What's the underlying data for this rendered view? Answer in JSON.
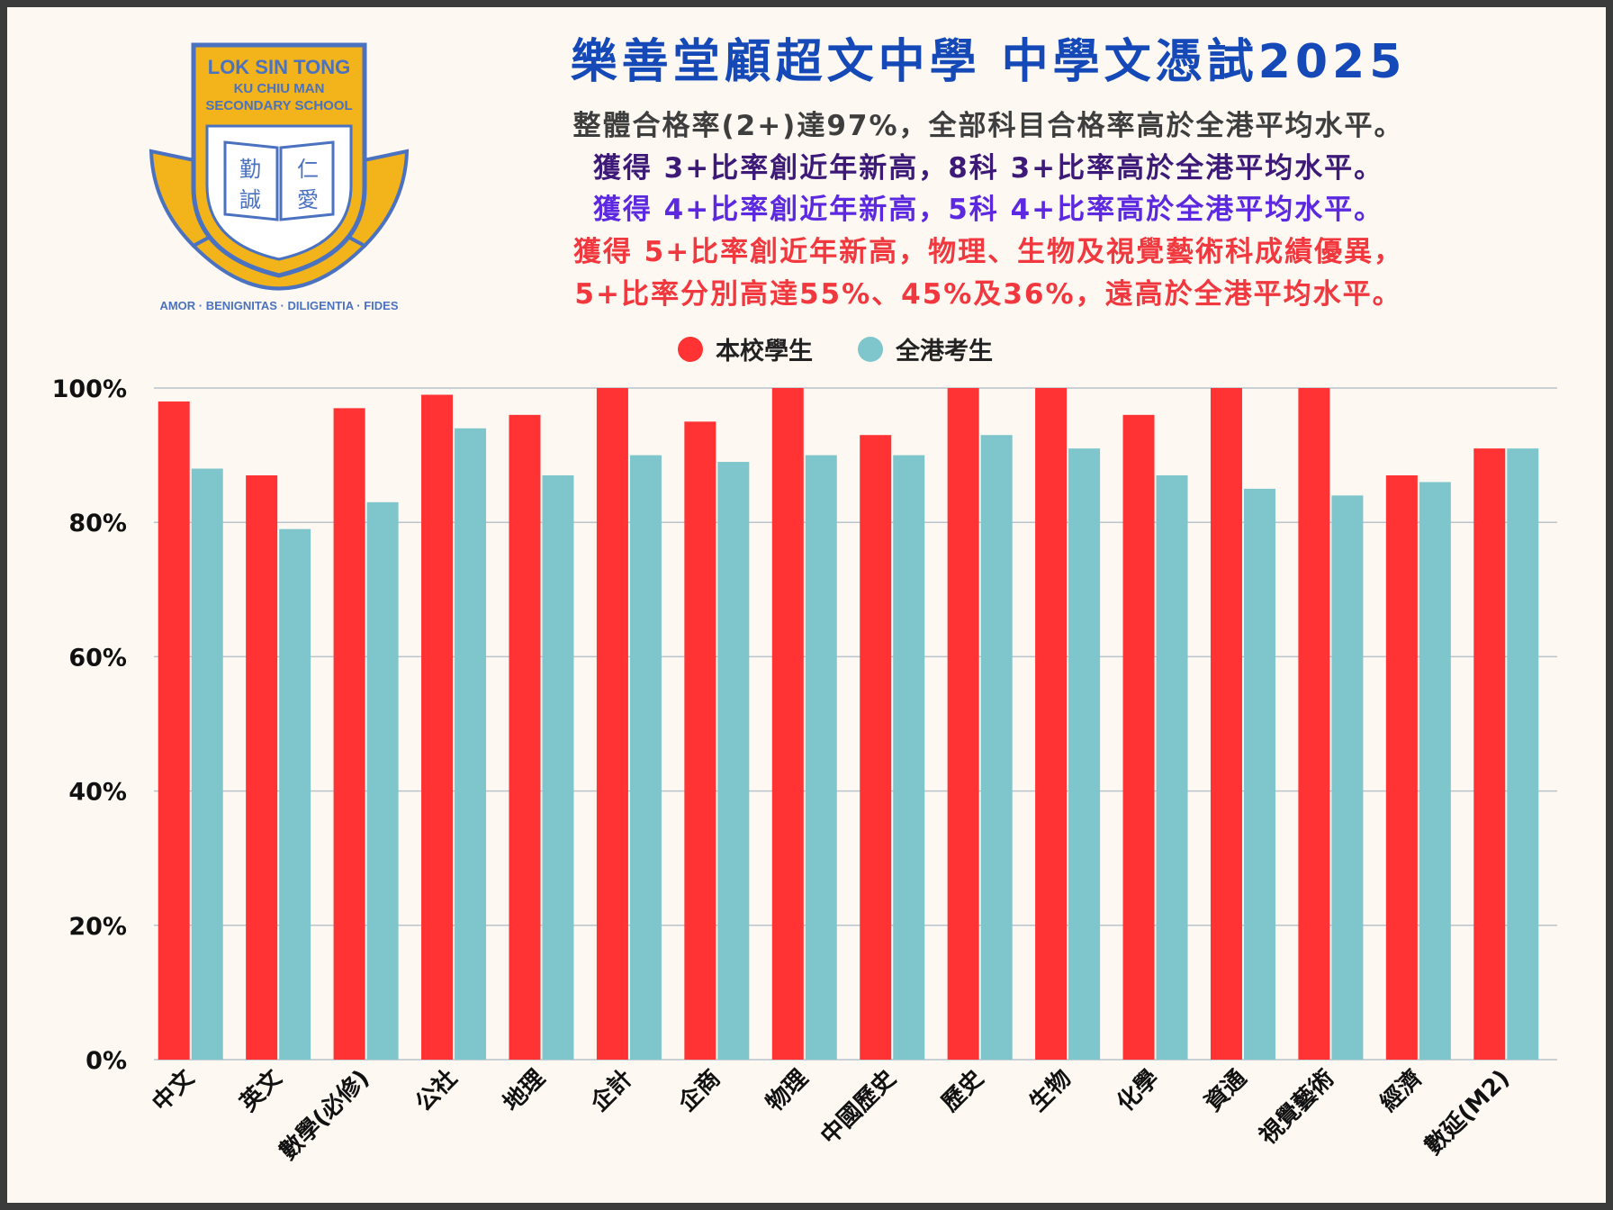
{
  "header": {
    "title": "樂善堂顧超文中學  中學文憑試2025",
    "line1": "整體合格率(2+)達97%，全部科目合格率高於全港平均水平。",
    "line2": "獲得 3+比率創近年新高，8科 3+比率高於全港平均水平。",
    "line3": "獲得 4+比率創近年新高，5科 4+比率高於全港平均水平。",
    "line4": "獲得 5+比率創近年新高，物理、生物及視覺藝術科成績優異，",
    "line5": "5+比率分別高達55%、45%及36%，遠高於全港平均水平。"
  },
  "logo": {
    "top_line1": "LOK SIN TONG",
    "top_line2": "KU CHIU MAN",
    "top_line3": "SECONDARY SCHOOL",
    "book_left": "勤誠",
    "book_right": "仁愛",
    "motto": "AMOR · BENIGNITAS · DILIGENTIA · FIDES"
  },
  "colors": {
    "school": "#ff3333",
    "hk": "#7ec6cb",
    "title": "#1549b8",
    "logo_gold": "#f2b31b",
    "logo_blue": "#4a72c0"
  },
  "chart_data": {
    "type": "bar",
    "categories": [
      "中文",
      "英文",
      "數學(必修)",
      "公社",
      "地理",
      "企計",
      "企商",
      "物理",
      "中國歷史",
      "歷史",
      "生物",
      "化學",
      "資通",
      "視覺藝術",
      "經濟",
      "數延(M2)"
    ],
    "series": [
      {
        "name": "本校學生",
        "color": "#ff3333",
        "values": [
          98,
          87,
          97,
          99,
          96,
          100,
          95,
          100,
          93,
          100,
          100,
          96,
          100,
          100,
          87,
          91
        ]
      },
      {
        "name": "全港考生",
        "color": "#7ec6cb",
        "values": [
          88,
          79,
          83,
          94,
          87,
          90,
          89,
          90,
          90,
          93,
          91,
          87,
          85,
          84,
          86,
          91
        ]
      }
    ],
    "yticks": [
      "0%",
      "20%",
      "40%",
      "60%",
      "80%",
      "100%"
    ],
    "ylim": [
      0,
      100
    ],
    "grid": true,
    "legend_position": "top-center"
  }
}
